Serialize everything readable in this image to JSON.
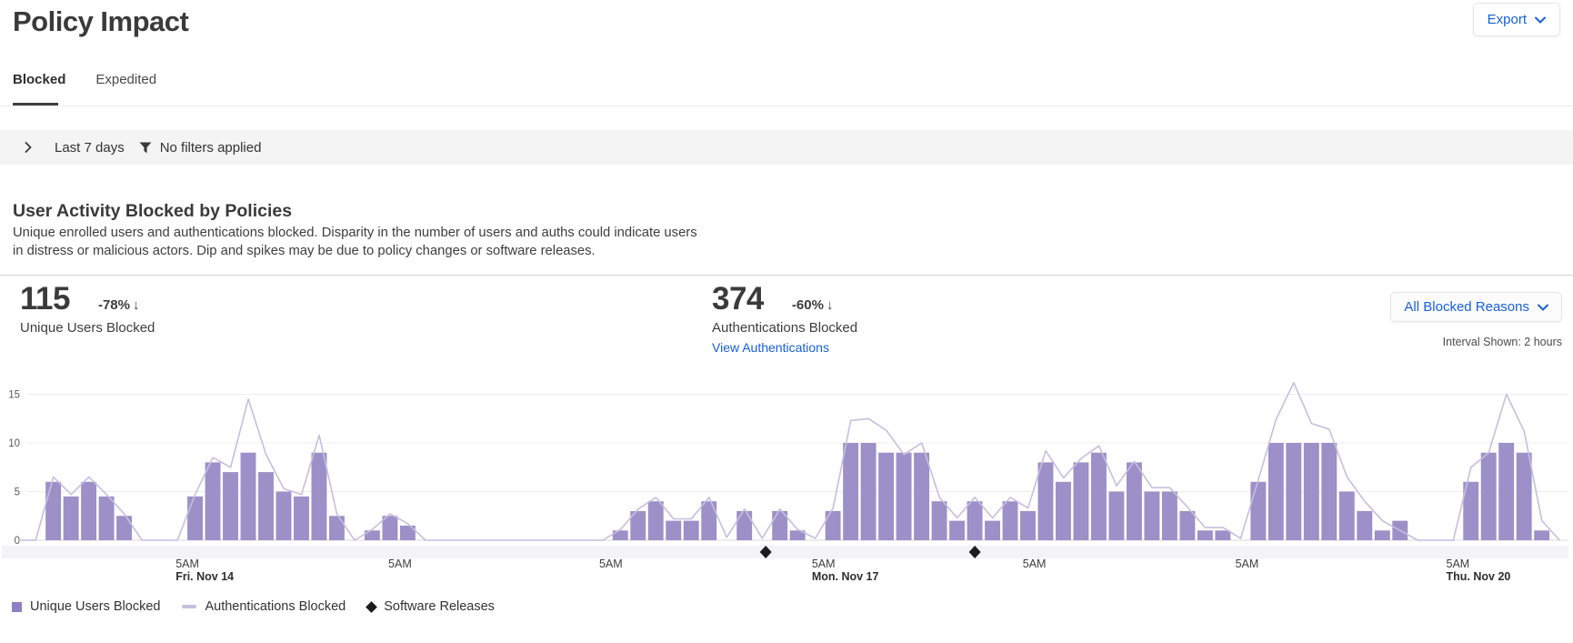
{
  "page": {
    "title": "Policy Impact"
  },
  "header": {
    "export_label": "Export"
  },
  "tabs": {
    "blocked": "Blocked",
    "expedited": "Expedited"
  },
  "filter_bar": {
    "date_range": "Last 7 days",
    "filters_text": "No filters applied"
  },
  "section": {
    "title": "User Activity Blocked by Policies",
    "description": "Unique enrolled users and authentications blocked. Disparity in the number of users and auths could indicate users in distress or malicious actors. Dip and spikes may be due to policy changes or software releases."
  },
  "metrics": {
    "users": {
      "value": "115",
      "delta": "-78%",
      "arrow": "↓",
      "label": "Unique Users Blocked"
    },
    "auths": {
      "value": "374",
      "delta": "-60%",
      "arrow": "↓",
      "label": "Authentications Blocked",
      "link": "View Authentications"
    }
  },
  "controls": {
    "reasons_dropdown": "All Blocked Reasons",
    "interval_text": "Interval Shown: 2 hours"
  },
  "legend": {
    "users": "Unique Users Blocked",
    "auths": "Authentications Blocked",
    "releases": "Software Releases"
  },
  "colors": {
    "bar": "#9d8fc7",
    "line": "#c6bee0",
    "marker": "#1c1c1c",
    "grid": "#efedf3",
    "axis": "#d8d8d8",
    "band": "#f4f3f6",
    "accent_blue": "#1660d9"
  },
  "chart_data": {
    "type": "bar",
    "title": "User Activity Blocked by Policies",
    "interval": "2 hours",
    "ylim": [
      0,
      15
    ],
    "yticks": [
      0,
      5,
      10,
      15
    ],
    "x_ticks": [
      {
        "slot": 9.4,
        "time": "5AM",
        "date": "Fri. Nov 14"
      },
      {
        "slot": 21.4,
        "time": "5AM",
        "date": ""
      },
      {
        "slot": 33.3,
        "time": "5AM",
        "date": ""
      },
      {
        "slot": 45.3,
        "time": "5AM",
        "date": "Mon. Nov 17"
      },
      {
        "slot": 57.2,
        "time": "5AM",
        "date": ""
      },
      {
        "slot": 69.2,
        "time": "5AM",
        "date": ""
      },
      {
        "slot": 81.1,
        "time": "5AM",
        "date": "Thu. Nov 20"
      }
    ],
    "series": [
      {
        "name": "Unique Users Blocked",
        "render": "bar",
        "values": [
          0,
          0,
          6,
          4.5,
          6,
          4.5,
          2.5,
          0,
          0,
          0,
          4.5,
          8,
          7,
          9,
          7,
          5,
          4.5,
          9,
          2.5,
          0,
          1,
          2.5,
          1.5,
          0,
          0,
          0,
          0,
          0,
          0,
          0,
          0,
          0,
          0,
          0,
          1,
          3,
          4,
          2,
          2,
          4,
          0,
          3,
          0,
          3,
          1,
          0,
          3,
          10,
          10,
          9,
          9,
          9,
          4,
          2,
          4,
          2,
          4,
          3,
          8,
          6,
          8,
          9,
          5,
          8,
          5,
          5,
          3,
          1,
          1,
          0,
          6,
          10,
          10,
          10,
          10,
          5,
          3,
          1,
          2,
          0,
          0,
          0,
          6,
          9,
          10,
          9,
          1,
          0
        ]
      },
      {
        "name": "Authentications Blocked",
        "render": "line",
        "values": [
          0,
          0,
          6.5,
          4.7,
          6.5,
          4.7,
          2.7,
          0,
          0,
          0,
          4.7,
          8.5,
          7.5,
          14.5,
          8.8,
          5.3,
          4.7,
          10.8,
          2.7,
          0,
          1.1,
          2.7,
          1.7,
          0,
          0,
          0,
          0,
          0,
          0,
          0,
          0,
          0,
          0,
          0,
          1.1,
          3.2,
          4.4,
          2.2,
          2.2,
          4.4,
          0.3,
          3.2,
          0.2,
          3.2,
          1.1,
          0.2,
          3.3,
          12.3,
          12.5,
          11.3,
          8.8,
          10,
          4.4,
          2.3,
          4.4,
          2.3,
          4.4,
          3.3,
          9.2,
          6.4,
          8.4,
          9.7,
          5.6,
          8.1,
          5.4,
          5.4,
          3.4,
          1.3,
          1.3,
          0.2,
          6.2,
          12.4,
          16.2,
          12,
          11.4,
          6.5,
          4,
          2,
          1,
          0,
          0,
          0,
          7.5,
          9,
          15,
          11.2,
          2,
          0
        ]
      }
    ],
    "events": {
      "name": "Software Releases",
      "marker": "diamond",
      "slots": [
        42.7,
        54.5
      ]
    },
    "legend_position": "bottom",
    "grid": true
  }
}
